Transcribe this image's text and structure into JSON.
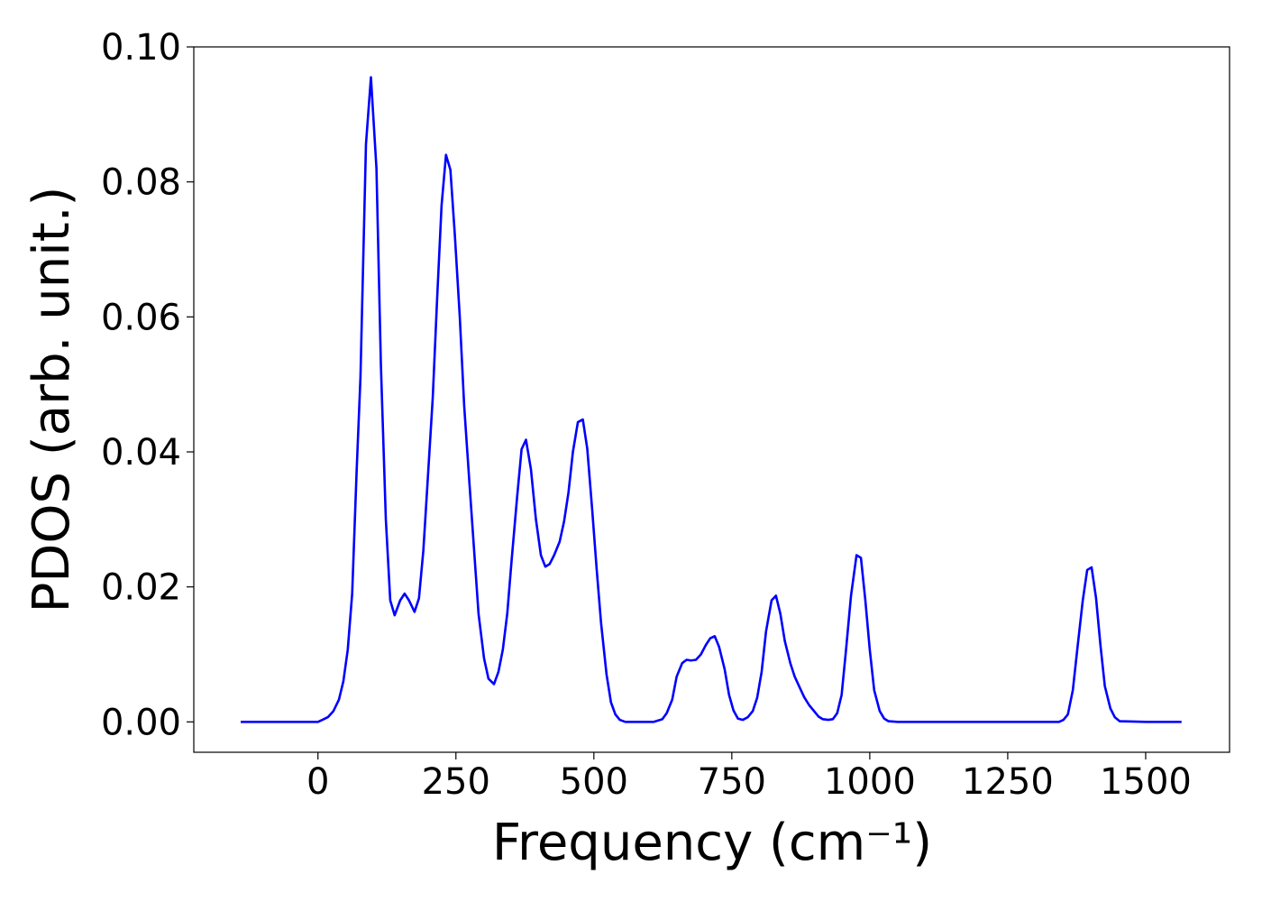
{
  "chart_data": {
    "type": "line",
    "xlabel": "Frequency (cm⁻¹)",
    "ylabel": "PDOS (arb. unit.)",
    "xlim": [
      -225,
      1652
    ],
    "ylim": [
      -0.0045,
      0.1
    ],
    "xticks": [
      0,
      250,
      500,
      750,
      1000,
      1250,
      1500
    ],
    "yticks": [
      {
        "value": 0,
        "label": "0.00"
      },
      {
        "value": 0.02,
        "label": "0.02"
      },
      {
        "value": 0.04,
        "label": "0.04"
      },
      {
        "value": 0.06,
        "label": "0.06"
      },
      {
        "value": 0.08,
        "label": "0.08"
      },
      {
        "value": 0.1,
        "label": "0.10"
      }
    ],
    "x": [
      -140,
      -100,
      -50,
      -20,
      0,
      8,
      18,
      28,
      38,
      46,
      54,
      62,
      70,
      77,
      87,
      96,
      106,
      114,
      123,
      131,
      139,
      149,
      157,
      165,
      175,
      183,
      191,
      199,
      208,
      216,
      224,
      232,
      240,
      248,
      257,
      265,
      275,
      283,
      291,
      301,
      309,
      319,
      327,
      335,
      343,
      351,
      361,
      369,
      377,
      386,
      395,
      404,
      412,
      420,
      428,
      438,
      446,
      454,
      462,
      471,
      480,
      488,
      497,
      505,
      513,
      523,
      531,
      539,
      547,
      557,
      580,
      608,
      624,
      632,
      642,
      650,
      660,
      668,
      676,
      685,
      694,
      703,
      711,
      719,
      727,
      737,
      745,
      753,
      761,
      770,
      779,
      788,
      796,
      804,
      812,
      822,
      830,
      838,
      846,
      856,
      864,
      873,
      881,
      890,
      899,
      907,
      915,
      925,
      933,
      941,
      949,
      957,
      966,
      976,
      984,
      992,
      1000,
      1008,
      1018,
      1026,
      1034,
      1050,
      1200,
      1343,
      1351,
      1359,
      1368,
      1376,
      1386,
      1394,
      1402,
      1410,
      1418,
      1426,
      1436,
      1444,
      1453,
      1500,
      1565
    ],
    "series": [
      {
        "color": "#0000ff",
        "values": [
          0,
          0,
          0,
          0,
          0,
          0.0003,
          0.0007,
          0.0016,
          0.0033,
          0.006,
          0.0107,
          0.019,
          0.037,
          0.051,
          0.0856,
          0.0955,
          0.082,
          0.053,
          0.03,
          0.018,
          0.0158,
          0.018,
          0.019,
          0.018,
          0.0163,
          0.0183,
          0.0254,
          0.036,
          0.048,
          0.0628,
          0.0765,
          0.084,
          0.0818,
          0.0722,
          0.06,
          0.0468,
          0.0348,
          0.0254,
          0.016,
          0.0094,
          0.0064,
          0.0056,
          0.0074,
          0.0107,
          0.016,
          0.024,
          0.0334,
          0.0404,
          0.0418,
          0.0374,
          0.03,
          0.0247,
          0.023,
          0.0234,
          0.0247,
          0.0267,
          0.0297,
          0.034,
          0.04,
          0.0444,
          0.0448,
          0.0405,
          0.0314,
          0.0227,
          0.0147,
          0.007,
          0.0029,
          0.0011,
          0.0003,
          0,
          0,
          0,
          0.0004,
          0.0013,
          0.0033,
          0.0067,
          0.0087,
          0.0092,
          0.0091,
          0.0092,
          0.01,
          0.0114,
          0.0124,
          0.0127,
          0.0111,
          0.0078,
          0.004,
          0.0017,
          0.0005,
          0.0003,
          0.0007,
          0.0016,
          0.0036,
          0.0074,
          0.0134,
          0.018,
          0.0187,
          0.016,
          0.012,
          0.0087,
          0.0067,
          0.0051,
          0.0037,
          0.0025,
          0.0016,
          0.0008,
          0.0004,
          0.0003,
          0.0004,
          0.0013,
          0.004,
          0.0107,
          0.0187,
          0.0247,
          0.0243,
          0.018,
          0.0107,
          0.0047,
          0.0016,
          0.0005,
          0.0001,
          0,
          0,
          0,
          0.0003,
          0.0011,
          0.0047,
          0.0107,
          0.018,
          0.0225,
          0.0229,
          0.0184,
          0.0114,
          0.0053,
          0.002,
          0.0007,
          0.0001,
          0,
          0
        ]
      }
    ]
  }
}
